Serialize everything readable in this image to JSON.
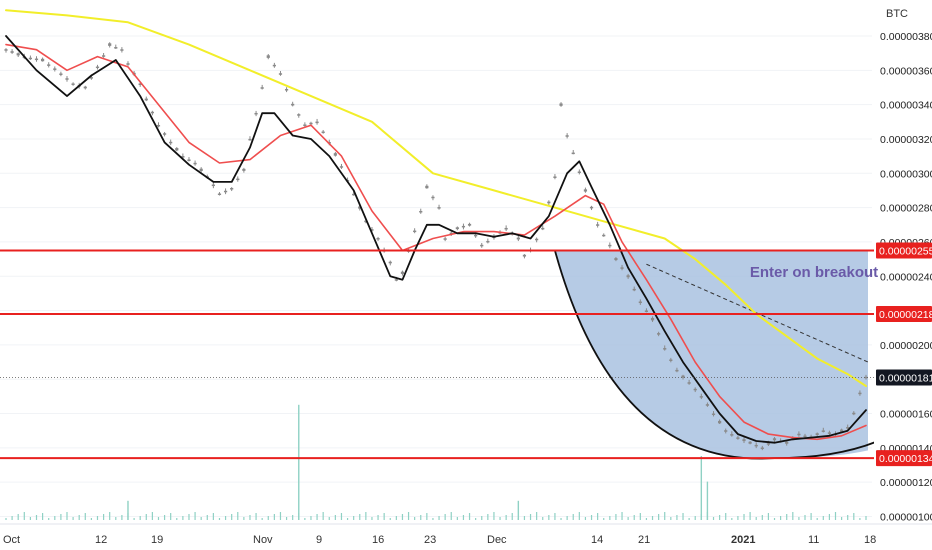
{
  "chart_data": {
    "type": "candlestick",
    "symbol_currency": "BTC",
    "x_labels": [
      "Oct",
      "12",
      "19",
      "Nov",
      "9",
      "16",
      "23",
      "Dec",
      "14",
      "21",
      "2021",
      "11",
      "18"
    ],
    "y_ticks": [
      "0.00000100",
      "0.00000120",
      "0.00000140",
      "0.00000160",
      "0.00000180",
      "0.00000200",
      "0.00000220",
      "0.00000240",
      "0.00000260",
      "0.00000280",
      "0.00000300",
      "0.00000320",
      "0.00000340",
      "0.00000360",
      "0.00000380"
    ],
    "ylim": [
      9.6e-07,
      3.87e-06
    ],
    "horizontal_levels": [
      {
        "label": "0.00000255",
        "value": 2.55e-06,
        "color": "#e8211f"
      },
      {
        "label": "0.00000218",
        "value": 2.18e-06,
        "color": "#e8211f"
      },
      {
        "label": "0.00000134",
        "value": 1.34e-06,
        "color": "#e8211f"
      }
    ],
    "last_price": {
      "label": "0.00000181",
      "value": 1.81e-06
    },
    "annotation": "Enter on breakout",
    "price_series": [
      [
        0,
        3.72e-06
      ],
      [
        3,
        3.68e-06
      ],
      [
        6,
        3.66e-06
      ],
      [
        9,
        3.58e-06
      ],
      [
        11,
        3.52e-06
      ],
      [
        13,
        3.5e-06
      ],
      [
        15,
        3.62e-06
      ],
      [
        17,
        3.75e-06
      ],
      [
        19,
        3.72e-06
      ],
      [
        20,
        3.64e-06
      ],
      [
        22,
        3.52e-06
      ],
      [
        23,
        3.43e-06
      ],
      [
        25,
        3.28e-06
      ],
      [
        27,
        3.18e-06
      ],
      [
        29,
        3.1e-06
      ],
      [
        31,
        3.06e-06
      ],
      [
        33,
        2.98e-06
      ],
      [
        35,
        2.88e-06
      ],
      [
        37,
        2.91e-06
      ],
      [
        39,
        3.02e-06
      ],
      [
        40,
        3.2e-06
      ],
      [
        42,
        3.5e-06
      ],
      [
        43,
        3.68e-06
      ],
      [
        45,
        3.58e-06
      ],
      [
        47,
        3.4e-06
      ],
      [
        49,
        3.28e-06
      ],
      [
        51,
        3.3e-06
      ],
      [
        53,
        3.18e-06
      ],
      [
        55,
        3.04e-06
      ],
      [
        57,
        2.88e-06
      ],
      [
        59,
        2.72e-06
      ],
      [
        61,
        2.62e-06
      ],
      [
        63,
        2.48e-06
      ],
      [
        64,
        2.38e-06
      ],
      [
        65,
        2.42e-06
      ],
      [
        66,
        2.55e-06
      ],
      [
        68,
        2.78e-06
      ],
      [
        69,
        2.92e-06
      ],
      [
        71,
        2.8e-06
      ],
      [
        72,
        2.62e-06
      ],
      [
        74,
        2.68e-06
      ],
      [
        76,
        2.7e-06
      ],
      [
        78,
        2.58e-06
      ],
      [
        80,
        2.63e-06
      ],
      [
        82,
        2.68e-06
      ],
      [
        84,
        2.62e-06
      ],
      [
        85,
        2.52e-06
      ],
      [
        86,
        2.55e-06
      ],
      [
        88,
        2.68e-06
      ],
      [
        90,
        2.98e-06
      ],
      [
        91,
        3.4e-06
      ],
      [
        92,
        3.22e-06
      ],
      [
        93,
        3.12e-06
      ],
      [
        95,
        2.9e-06
      ],
      [
        96,
        2.8e-06
      ],
      [
        97,
        2.7e-06
      ],
      [
        99,
        2.58e-06
      ],
      [
        100,
        2.5e-06
      ],
      [
        101,
        2.45e-06
      ],
      [
        102,
        2.4e-06
      ],
      [
        104,
        2.25e-06
      ],
      [
        106,
        2.15e-06
      ],
      [
        108,
        1.98e-06
      ],
      [
        110,
        1.85e-06
      ],
      [
        112,
        1.78e-06
      ],
      [
        114,
        1.7e-06
      ],
      [
        116,
        1.6e-06
      ],
      [
        118,
        1.5e-06
      ],
      [
        120,
        1.46e-06
      ],
      [
        122,
        1.43e-06
      ],
      [
        124,
        1.4e-06
      ],
      [
        126,
        1.45e-06
      ],
      [
        128,
        1.43e-06
      ],
      [
        130,
        1.48e-06
      ],
      [
        132,
        1.46e-06
      ],
      [
        134,
        1.5e-06
      ],
      [
        136,
        1.48e-06
      ],
      [
        138,
        1.52e-06
      ],
      [
        139,
        1.6e-06
      ],
      [
        140,
        1.72e-06
      ],
      [
        141,
        1.81e-06
      ]
    ],
    "sma_black": [
      [
        0,
        3.8e-06
      ],
      [
        5,
        3.6e-06
      ],
      [
        10,
        3.45e-06
      ],
      [
        14,
        3.57e-06
      ],
      [
        18,
        3.66e-06
      ],
      [
        22,
        3.45e-06
      ],
      [
        26,
        3.18e-06
      ],
      [
        30,
        3.05e-06
      ],
      [
        34,
        2.95e-06
      ],
      [
        37,
        2.95e-06
      ],
      [
        40,
        3.15e-06
      ],
      [
        42,
        3.35e-06
      ],
      [
        44,
        3.35e-06
      ],
      [
        47,
        3.22e-06
      ],
      [
        50,
        3.2e-06
      ],
      [
        53,
        3.1e-06
      ],
      [
        57,
        2.9e-06
      ],
      [
        60,
        2.65e-06
      ],
      [
        63,
        2.4e-06
      ],
      [
        65,
        2.38e-06
      ],
      [
        67,
        2.55e-06
      ],
      [
        69,
        2.7e-06
      ],
      [
        71,
        2.7e-06
      ],
      [
        74,
        2.65e-06
      ],
      [
        77,
        2.65e-06
      ],
      [
        80,
        2.63e-06
      ],
      [
        83,
        2.65e-06
      ],
      [
        86,
        2.62e-06
      ],
      [
        89,
        2.75e-06
      ],
      [
        92,
        3e-06
      ],
      [
        94,
        3.07e-06
      ],
      [
        96,
        2.92e-06
      ],
      [
        99,
        2.7e-06
      ],
      [
        102,
        2.45e-06
      ],
      [
        105,
        2.27e-06
      ],
      [
        108,
        2.08e-06
      ],
      [
        111,
        1.9e-06
      ],
      [
        114,
        1.75e-06
      ],
      [
        117,
        1.6e-06
      ],
      [
        120,
        1.48e-06
      ],
      [
        123,
        1.44e-06
      ],
      [
        126,
        1.43e-06
      ],
      [
        129,
        1.45e-06
      ],
      [
        132,
        1.46e-06
      ],
      [
        135,
        1.47e-06
      ],
      [
        138,
        1.5e-06
      ],
      [
        141,
        1.62e-06
      ]
    ],
    "sma_red": [
      [
        0,
        3.75e-06
      ],
      [
        5,
        3.72e-06
      ],
      [
        10,
        3.6e-06
      ],
      [
        15,
        3.68e-06
      ],
      [
        20,
        3.62e-06
      ],
      [
        25,
        3.4e-06
      ],
      [
        30,
        3.18e-06
      ],
      [
        35,
        3.06e-06
      ],
      [
        40,
        3.08e-06
      ],
      [
        45,
        3.22e-06
      ],
      [
        50,
        3.28e-06
      ],
      [
        55,
        3.1e-06
      ],
      [
        60,
        2.78e-06
      ],
      [
        65,
        2.55e-06
      ],
      [
        70,
        2.62e-06
      ],
      [
        75,
        2.66e-06
      ],
      [
        80,
        2.66e-06
      ],
      [
        85,
        2.64e-06
      ],
      [
        90,
        2.75e-06
      ],
      [
        95,
        2.87e-06
      ],
      [
        98,
        2.82e-06
      ],
      [
        101,
        2.6e-06
      ],
      [
        105,
        2.38e-06
      ],
      [
        109,
        2.15e-06
      ],
      [
        113,
        1.9e-06
      ],
      [
        117,
        1.7e-06
      ],
      [
        121,
        1.55e-06
      ],
      [
        125,
        1.48e-06
      ],
      [
        129,
        1.46e-06
      ],
      [
        133,
        1.45e-06
      ],
      [
        137,
        1.47e-06
      ],
      [
        141,
        1.53e-06
      ]
    ],
    "sma_yellow": [
      [
        0,
        3.95e-06
      ],
      [
        10,
        3.92e-06
      ],
      [
        20,
        3.88e-06
      ],
      [
        30,
        3.75e-06
      ],
      [
        40,
        3.6e-06
      ],
      [
        50,
        3.45e-06
      ],
      [
        60,
        3.3e-06
      ],
      [
        70,
        3e-06
      ],
      [
        80,
        2.9e-06
      ],
      [
        90,
        2.8e-06
      ],
      [
        100,
        2.7e-06
      ],
      [
        108,
        2.62e-06
      ],
      [
        113,
        2.5e-06
      ],
      [
        118,
        2.35e-06
      ],
      [
        123,
        2.18e-06
      ],
      [
        128,
        2.05e-06
      ],
      [
        133,
        1.92e-06
      ],
      [
        138,
        1.83e-06
      ],
      [
        141,
        1.76e-06
      ]
    ],
    "volume_spikes": [
      {
        "i": 48,
        "v": 0.9
      },
      {
        "i": 114,
        "v": 0.5
      },
      {
        "i": 115,
        "v": 0.3
      },
      {
        "i": 20,
        "v": 0.15
      },
      {
        "i": 84,
        "v": 0.15
      }
    ],
    "colors": {
      "candles": "#8a8a8a",
      "sma_black": "#111111",
      "sma_red": "#ef4e4e",
      "sma_yellow": "#f2ee2a",
      "level_line": "#e8211f",
      "channel_fill": "#a9c2e0",
      "channel_curve": "#111111",
      "volume": "#8fd1c4",
      "annotation": "#6a5aa8"
    }
  }
}
